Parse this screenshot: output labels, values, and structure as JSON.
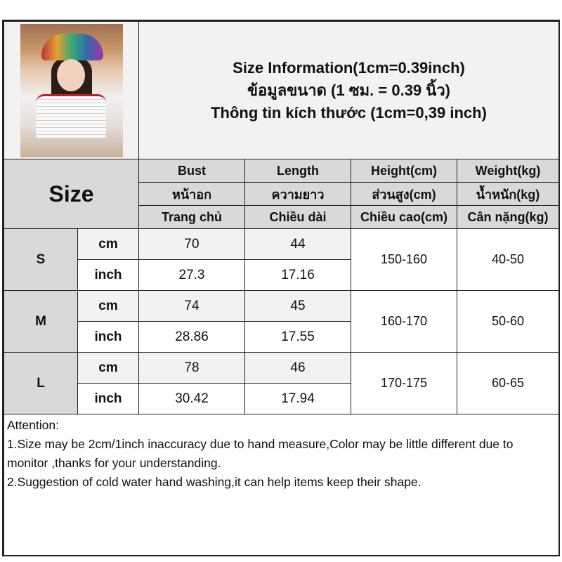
{
  "header": {
    "title_en": "Size Information(1cm=0.39inch)",
    "title_th": "ข้อมูลขนาด (1 ซม. = 0.39 นิ้ว)",
    "title_vi": "Thông tin kích thước (1cm=0,39 inch)",
    "image": "model-photo"
  },
  "columns": {
    "size_label": "Size",
    "bust": [
      "Bust",
      "หน้าอก",
      "Trang chủ"
    ],
    "length": [
      "Length",
      "ความยาว",
      "Chiều dài"
    ],
    "height": [
      "Height(cm)",
      "ส่วนสูง(cm)",
      "Chiều cao(cm)"
    ],
    "weight": [
      "Weight(kg)",
      "น้ำหนัก(kg)",
      "Cân nặng(kg)"
    ]
  },
  "sizes": [
    {
      "size": "S",
      "cm_label": "cm",
      "inch_label": "inch",
      "bust_cm": "70",
      "length_cm": "44",
      "bust_inch": "27.3",
      "length_inch": "17.16",
      "height": "150-160",
      "weight": "40-50"
    },
    {
      "size": "M",
      "cm_label": "cm",
      "inch_label": "inch",
      "bust_cm": "74",
      "length_cm": "45",
      "bust_inch": "28.86",
      "length_inch": "17.55",
      "height": "160-170",
      "weight": "50-60"
    },
    {
      "size": "L",
      "cm_label": "cm",
      "inch_label": "inch",
      "bust_cm": "78",
      "length_cm": "46",
      "bust_inch": "30.42",
      "length_inch": "17.94",
      "height": "170-175",
      "weight": "60-65"
    }
  ],
  "attention": {
    "heading": "Attention:",
    "line1": "1.Size may be 2cm/1inch inaccuracy due to hand measure,Color may be little different due to monitor ,thanks for your understanding.",
    "line2": "2.Suggestion of cold water hand washing,it can help items keep their shape."
  },
  "colors": {
    "header_bg": "#d9d9d9",
    "light_bg": "#f2f2f2",
    "border": "#222222"
  }
}
